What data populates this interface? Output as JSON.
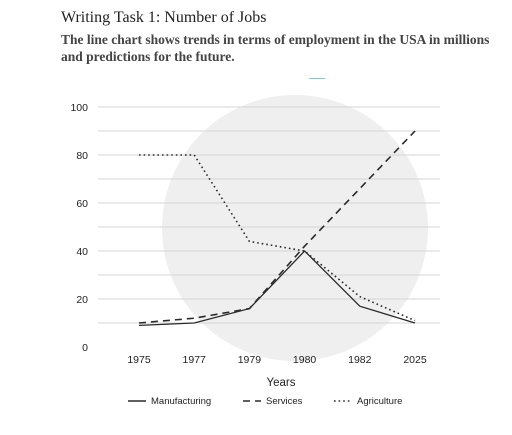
{
  "header": {
    "title": "Writing Task 1: Number of Jobs",
    "subtitle": "The line chart shows trends in terms of employment in the USA in millions and predictions for the future."
  },
  "chart_data": {
    "type": "line",
    "title": "",
    "xlabel": "Years",
    "ylabel": "",
    "categories": [
      "1975",
      "1977",
      "1979",
      "1980",
      "1982",
      "2025"
    ],
    "yticks": [
      0,
      20,
      40,
      60,
      80,
      100
    ],
    "ylim": [
      0,
      100
    ],
    "grid": true,
    "legend_position": "bottom",
    "series": [
      {
        "name": "Manufacturing",
        "style": "solid",
        "values": [
          9,
          10,
          16,
          40,
          17,
          10
        ]
      },
      {
        "name": "Services",
        "style": "dashed",
        "values": [
          10,
          12,
          16,
          42,
          66,
          90
        ]
      },
      {
        "name": "Agriculture",
        "style": "dotted",
        "values": [
          80,
          80,
          44,
          40,
          21,
          11
        ]
      }
    ],
    "colors": {
      "line": "#2a2a2a",
      "grid": "#d4d4d4",
      "watermark": "#efefef"
    }
  }
}
